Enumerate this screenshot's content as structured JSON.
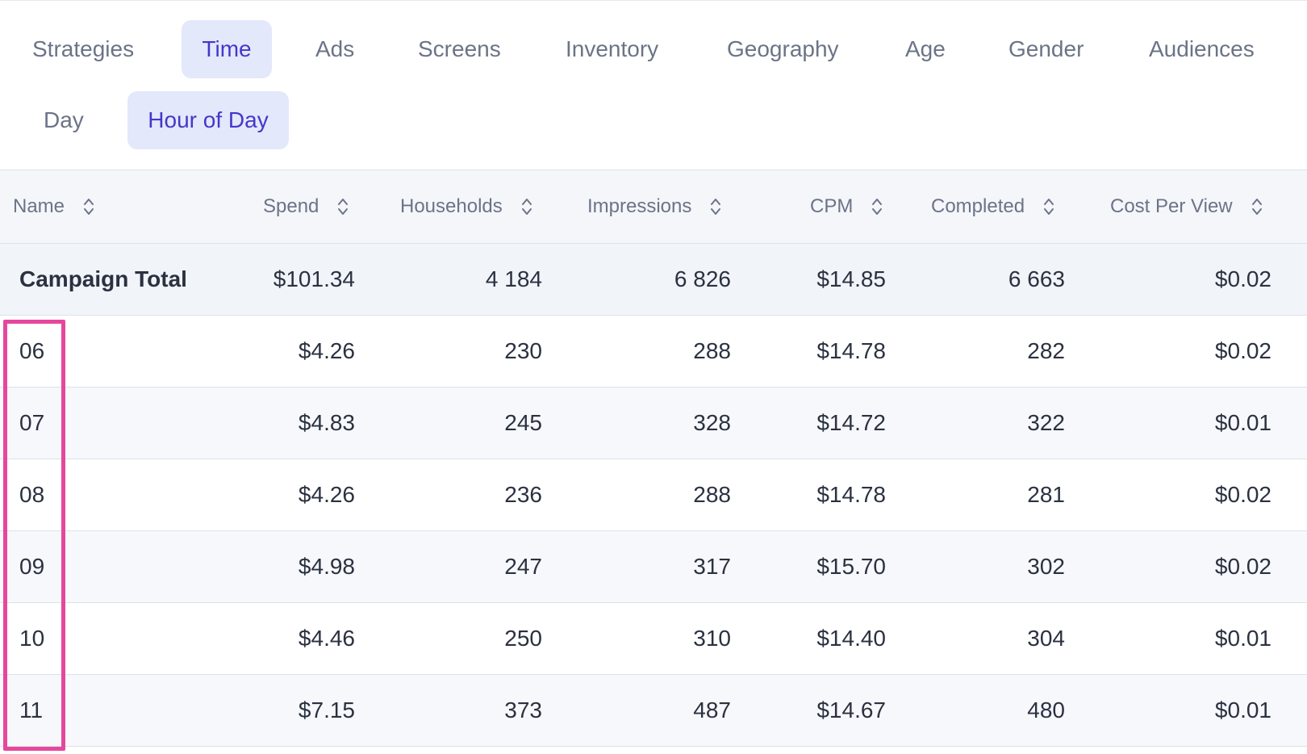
{
  "tabs": {
    "primary": [
      {
        "label": "Strategies",
        "active": false
      },
      {
        "label": "Time",
        "active": true
      },
      {
        "label": "Ads",
        "active": false
      },
      {
        "label": "Screens",
        "active": false
      },
      {
        "label": "Inventory",
        "active": false
      },
      {
        "label": "Geography",
        "active": false
      },
      {
        "label": "Age",
        "active": false
      },
      {
        "label": "Gender",
        "active": false
      },
      {
        "label": "Audiences",
        "active": false
      }
    ],
    "secondary": [
      {
        "label": "Day",
        "active": false
      },
      {
        "label": "Hour of Day",
        "active": true
      }
    ]
  },
  "table": {
    "columns": [
      "Name",
      "Spend",
      "Households",
      "Impressions",
      "CPM",
      "Completed",
      "Cost Per View"
    ],
    "total": {
      "name": "Campaign Total",
      "spend": "$101.34",
      "households": "4 184",
      "impressions": "6 826",
      "cpm": "$14.85",
      "completed": "6 663",
      "cost_per_view": "$0.02"
    },
    "rows": [
      {
        "name": "06",
        "spend": "$4.26",
        "households": "230",
        "impressions": "288",
        "cpm": "$14.78",
        "completed": "282",
        "cost_per_view": "$0.02"
      },
      {
        "name": "07",
        "spend": "$4.83",
        "households": "245",
        "impressions": "328",
        "cpm": "$14.72",
        "completed": "322",
        "cost_per_view": "$0.01"
      },
      {
        "name": "08",
        "spend": "$4.26",
        "households": "236",
        "impressions": "288",
        "cpm": "$14.78",
        "completed": "281",
        "cost_per_view": "$0.02"
      },
      {
        "name": "09",
        "spend": "$4.98",
        "households": "247",
        "impressions": "317",
        "cpm": "$15.70",
        "completed": "302",
        "cost_per_view": "$0.02"
      },
      {
        "name": "10",
        "spend": "$4.46",
        "households": "250",
        "impressions": "310",
        "cpm": "$14.40",
        "completed": "304",
        "cost_per_view": "$0.01"
      },
      {
        "name": "11",
        "spend": "$7.15",
        "households": "373",
        "impressions": "487",
        "cpm": "$14.67",
        "completed": "480",
        "cost_per_view": "$0.01"
      }
    ]
  },
  "colors": {
    "accent": "#4338ca",
    "active_tab_bg": "#e3e8fb",
    "highlight": "#e6479c"
  }
}
